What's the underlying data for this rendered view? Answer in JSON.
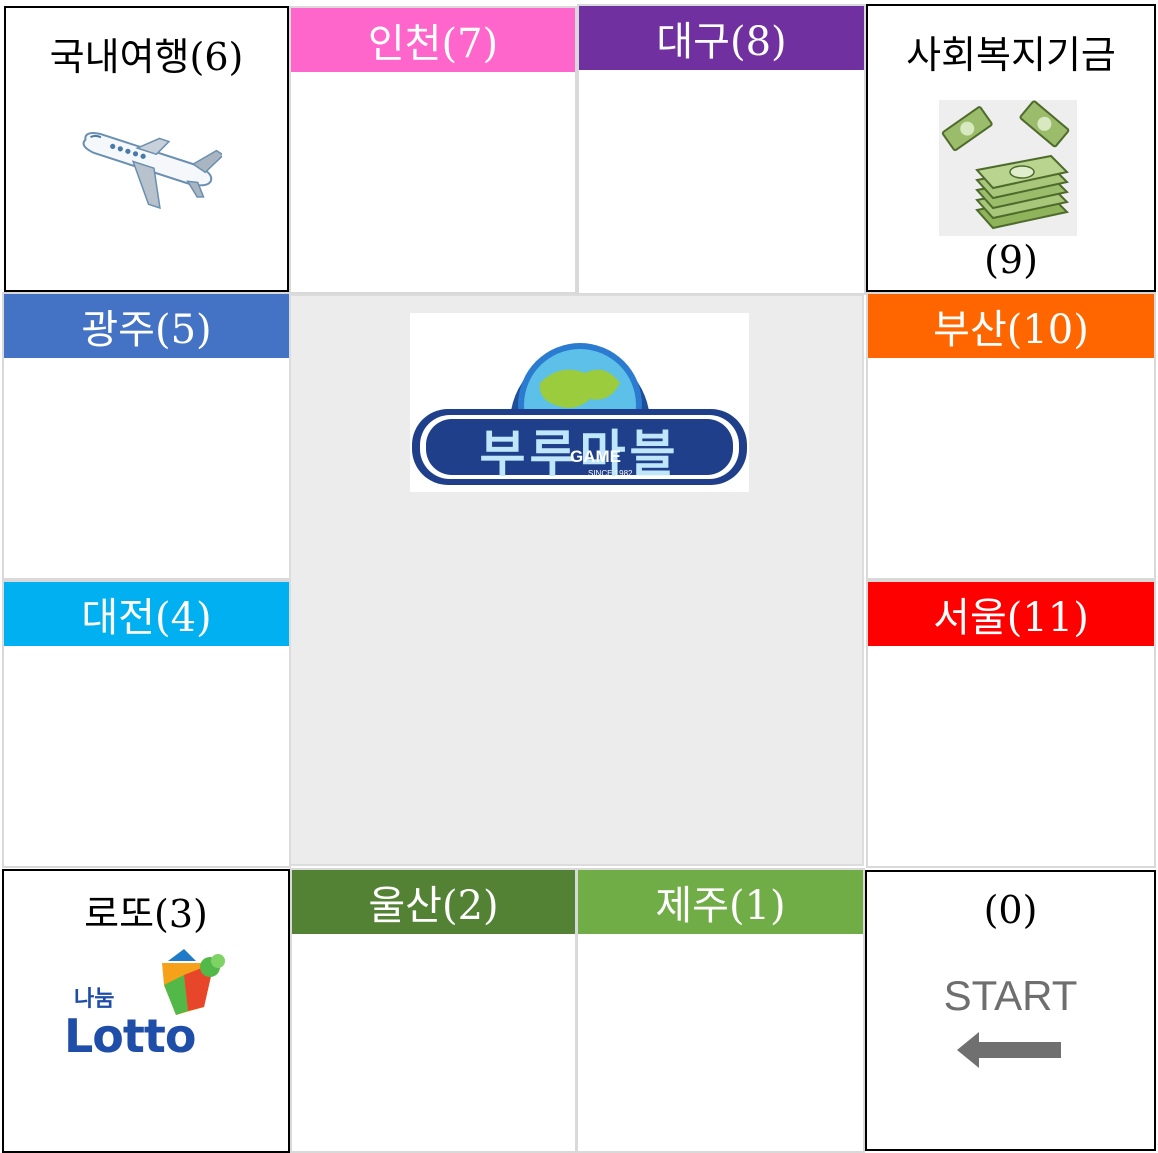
{
  "board": {
    "corners": {
      "travel": {
        "title": "국내여행(6)"
      },
      "welfare": {
        "title": "사회복지기금",
        "number": "(9)"
      },
      "lotto": {
        "title": "로또(3)",
        "logo_small": "나눔",
        "logo_big": "Lotto"
      },
      "start": {
        "number": "(0)",
        "label": "START"
      }
    },
    "cities": {
      "incheon": {
        "label": "인천(7)",
        "color": "#ff66cc"
      },
      "daegu": {
        "label": "대구(8)",
        "color": "#7030a0"
      },
      "gwangju": {
        "label": "광주(5)",
        "color": "#4472c4"
      },
      "busan": {
        "label": "부산(10)",
        "color": "#ff6600"
      },
      "daejeon": {
        "label": "대전(4)",
        "color": "#00b0f0"
      },
      "seoul": {
        "label": "서울(11)",
        "color": "#ff0000"
      },
      "ulsan": {
        "label": "울산(2)",
        "color": "#548235"
      },
      "jeju": {
        "label": "제주(1)",
        "color": "#70ad47"
      }
    },
    "center": {
      "logo_text": "부루마블",
      "logo_sub": "GAME",
      "logo_since": "SINCE 1982",
      "background": "#ececec"
    }
  },
  "icons": [
    "airplane-icon",
    "money-stack-icon",
    "lotto-logo",
    "left-arrow-icon",
    "game-logo"
  ]
}
